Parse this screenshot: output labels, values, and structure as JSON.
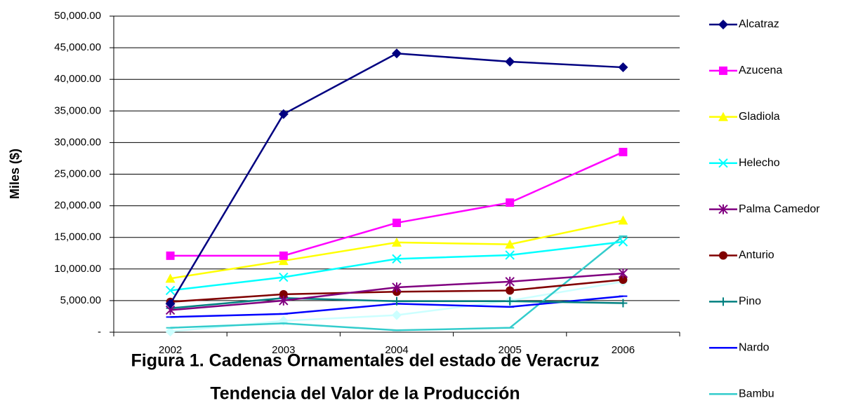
{
  "chart_data": {
    "type": "line",
    "title": "Figura 1. Cadenas Ornamentales del estado de Veracruz",
    "subtitle": "Tendencia del Valor de la Producción",
    "y_label": "Miles ($)",
    "categories": [
      "2002",
      "2003",
      "2004",
      "2005",
      "2006"
    ],
    "series": [
      {
        "name": "Alcatraz",
        "color": "#000080",
        "marker": "diamond",
        "values": [
          4500,
          34500,
          44100,
          42800,
          41900
        ]
      },
      {
        "name": "Azucena",
        "color": "#ff00ff",
        "marker": "square",
        "values": [
          12100,
          12100,
          17300,
          20500,
          28500
        ]
      },
      {
        "name": "Gladiola",
        "color": "#ffff00",
        "marker": "triangle",
        "values": [
          8500,
          11300,
          14200,
          13900,
          17700
        ]
      },
      {
        "name": "Helecho",
        "color": "#00ffff",
        "marker": "x",
        "values": [
          6600,
          8700,
          11600,
          12200,
          14300
        ]
      },
      {
        "name": "Palma Camedor",
        "color": "#800080",
        "marker": "star",
        "values": [
          3500,
          5000,
          7100,
          8000,
          9300
        ]
      },
      {
        "name": "Anturio",
        "color": "#800000",
        "marker": "circle",
        "values": [
          4800,
          6000,
          6400,
          6600,
          8300
        ]
      },
      {
        "name": "Pino",
        "color": "#008080",
        "marker": "plus",
        "values": [
          3800,
          5400,
          4900,
          4900,
          4600
        ]
      },
      {
        "name": "Nardo",
        "color": "#0000ff",
        "marker": "dash",
        "values": [
          2400,
          2900,
          4500,
          4000,
          5700
        ]
      },
      {
        "name": "Bambu",
        "color": "#33cccc",
        "marker": "dash",
        "values": [
          700,
          1400,
          300,
          700,
          15200
        ]
      },
      {
        "color": "#ccffff",
        "marker": "diamond",
        "values": [
          100,
          1800,
          2700,
          5000,
          8000
        ]
      }
    ],
    "ylim": [
      0,
      50000
    ],
    "yticks": [
      {
        "value": 0,
        "label": "-"
      },
      {
        "value": 5000,
        "label": "5,000.00"
      },
      {
        "value": 10000,
        "label": "10,000.00"
      },
      {
        "value": 15000,
        "label": "15,000.00"
      },
      {
        "value": 20000,
        "label": "20,000.00"
      },
      {
        "value": 25000,
        "label": "25,000.00"
      },
      {
        "value": 30000,
        "label": "30,000.00"
      },
      {
        "value": 35000,
        "label": "35,000.00"
      },
      {
        "value": 40000,
        "label": "40,000.00"
      },
      {
        "value": 45000,
        "label": "45,000.00"
      },
      {
        "value": 50000,
        "label": "50,000.00"
      }
    ],
    "grid": true
  }
}
